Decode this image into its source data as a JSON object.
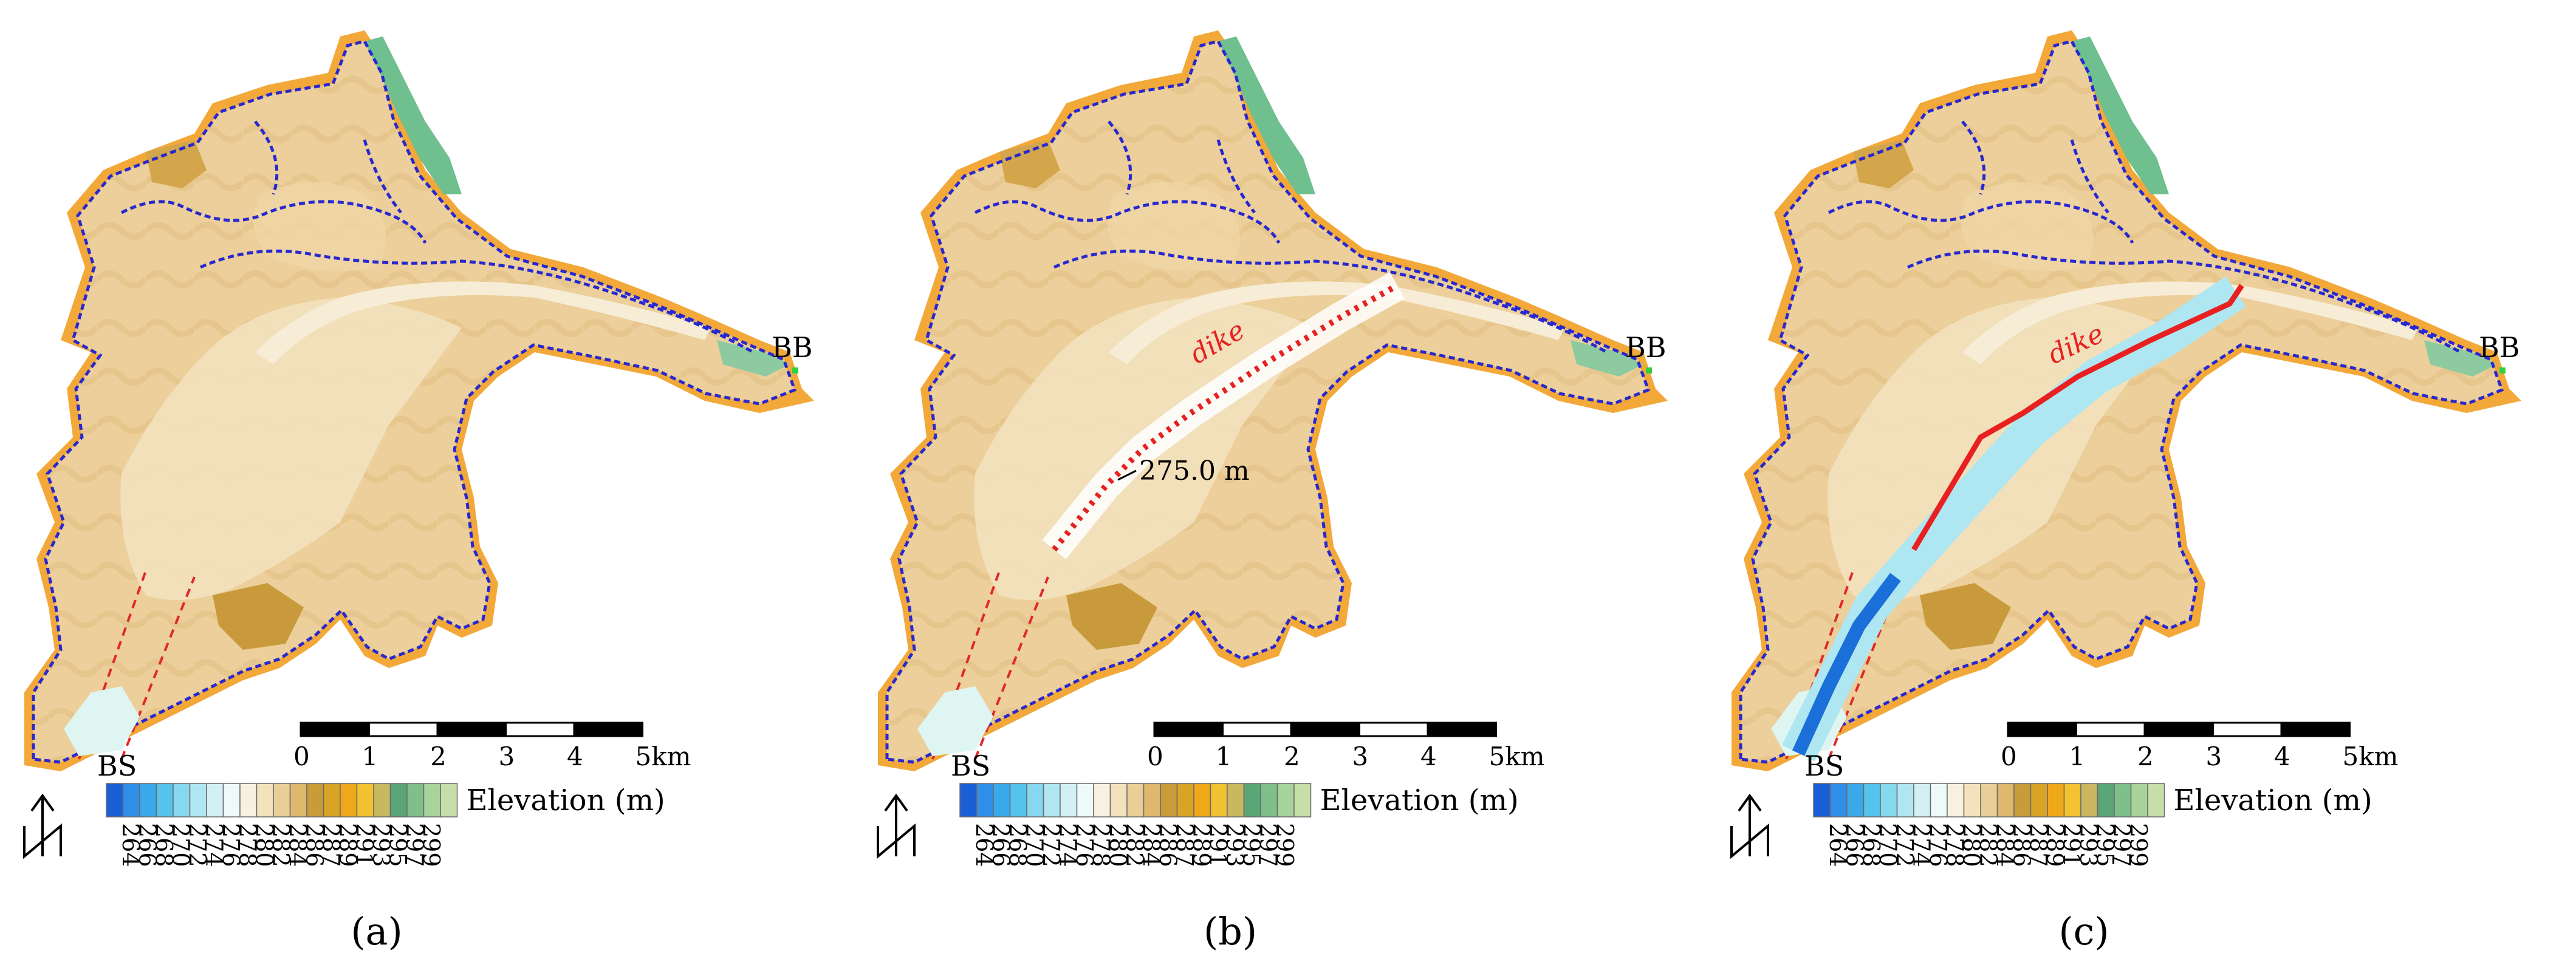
{
  "panels": [
    {
      "label": "(a)",
      "label_letter": "a",
      "site_labels": {
        "upstream": "BB",
        "downstream": "BS"
      },
      "has_dike": false,
      "has_flow_channel": false
    },
    {
      "label": "(b)",
      "label_letter": "b",
      "site_labels": {
        "upstream": "BB",
        "downstream": "BS"
      },
      "has_dike": true,
      "dike_label": "dike",
      "dike_style": "dotted",
      "elevation_annotation": "275.0 m",
      "has_flow_channel": false
    },
    {
      "label": "(c)",
      "label_letter": "c",
      "site_labels": {
        "upstream": "BB",
        "downstream": "BS"
      },
      "has_dike": true,
      "dike_label": "dike",
      "dike_style": "solid",
      "has_flow_channel": true
    }
  ],
  "scale_bar": {
    "ticks": [
      "0",
      "1",
      "2",
      "3",
      "4",
      "5km"
    ]
  },
  "legend": {
    "title": "Elevation (m)",
    "labels": [
      "264",
      "266",
      "268",
      "270",
      "272",
      "274",
      "276",
      "278",
      "280",
      "282",
      "284",
      "286",
      "287",
      "289",
      "291",
      "293",
      "295",
      "297",
      "299"
    ],
    "colors": [
      "#1a5fd6",
      "#2f8ee8",
      "#3aa9ea",
      "#55c3ec",
      "#86d8ef",
      "#b0e5f2",
      "#d3f1f5",
      "#eef9f9",
      "#f8f1e1",
      "#f3e2bc",
      "#e9cf97",
      "#ddb86d",
      "#c99c3a",
      "#d9a426",
      "#efa81a",
      "#f2c230",
      "#c9b860",
      "#5aa676",
      "#7fc08a"
    ],
    "extra_colors": [
      "#a8d39a",
      "#c7dea8"
    ]
  },
  "north_arrow": {
    "label": "N"
  },
  "colors": {
    "boundary": "#2828d0",
    "dike": "#e82020",
    "study_area": "#e02828",
    "outline_land": "#f0b040"
  }
}
